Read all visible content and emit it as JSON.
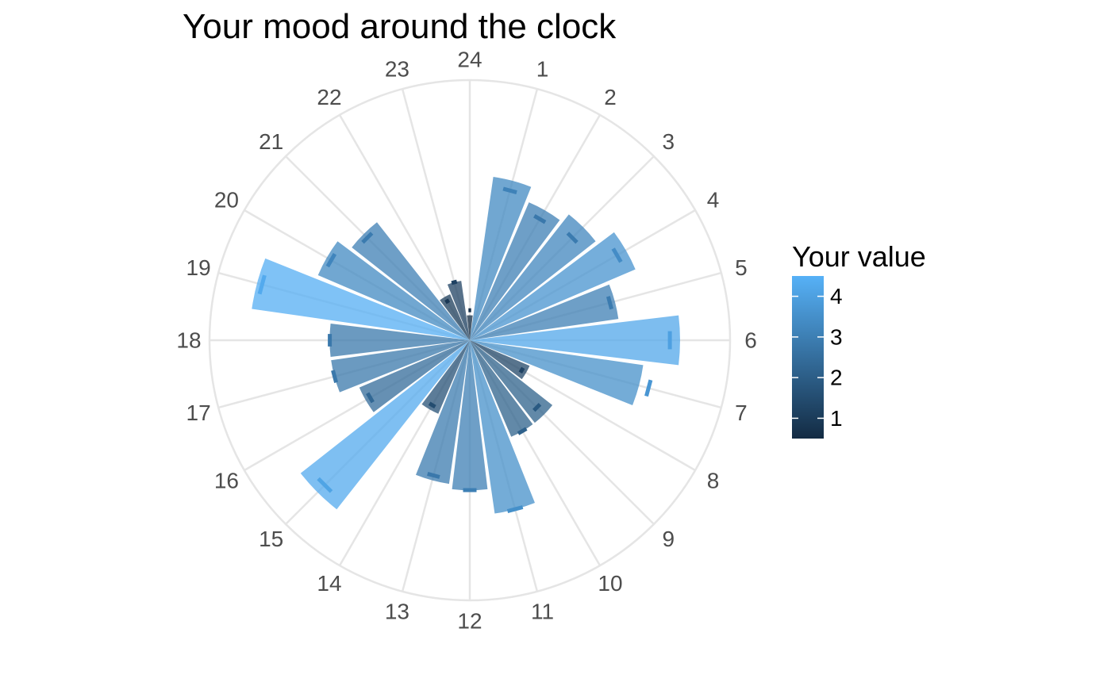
{
  "chart_data": {
    "type": "bar",
    "coord": "polar",
    "title": "Your mood around the clock",
    "categories": [
      "1",
      "2",
      "3",
      "4",
      "5",
      "6",
      "7",
      "8",
      "9",
      "10",
      "11",
      "12",
      "13",
      "14",
      "15",
      "16",
      "17",
      "18",
      "19",
      "20",
      "21",
      "22",
      "23",
      "24"
    ],
    "values": [
      3.3,
      3.0,
      3.2,
      3.6,
      3.0,
      4.2,
      3.5,
      1.3,
      2.1,
      2.1,
      3.5,
      3.0,
      2.9,
      1.6,
      4.3,
      2.4,
      2.8,
      2.8,
      4.4,
      3.3,
      3.0,
      1.0,
      1.2,
      0.5
    ],
    "marker_values": [
      3.1,
      2.8,
      2.9,
      3.4,
      2.9,
      4.0,
      3.7,
      1.2,
      1.9,
      2.1,
      3.5,
      3.0,
      2.8,
      1.5,
      4.1,
      2.3,
      2.8,
      2.8,
      4.3,
      3.2,
      2.9,
      0.9,
      1.2,
      0.6
    ],
    "ylim": [
      0,
      5.2
    ],
    "grid": true,
    "legend": {
      "title": "Your value",
      "position": "right",
      "type": "colorbar",
      "ticks": [
        "1",
        "2",
        "3",
        "4"
      ],
      "range": [
        0.5,
        4.5
      ],
      "color_low": "#132B43",
      "color_high": "#56B1F7"
    }
  }
}
